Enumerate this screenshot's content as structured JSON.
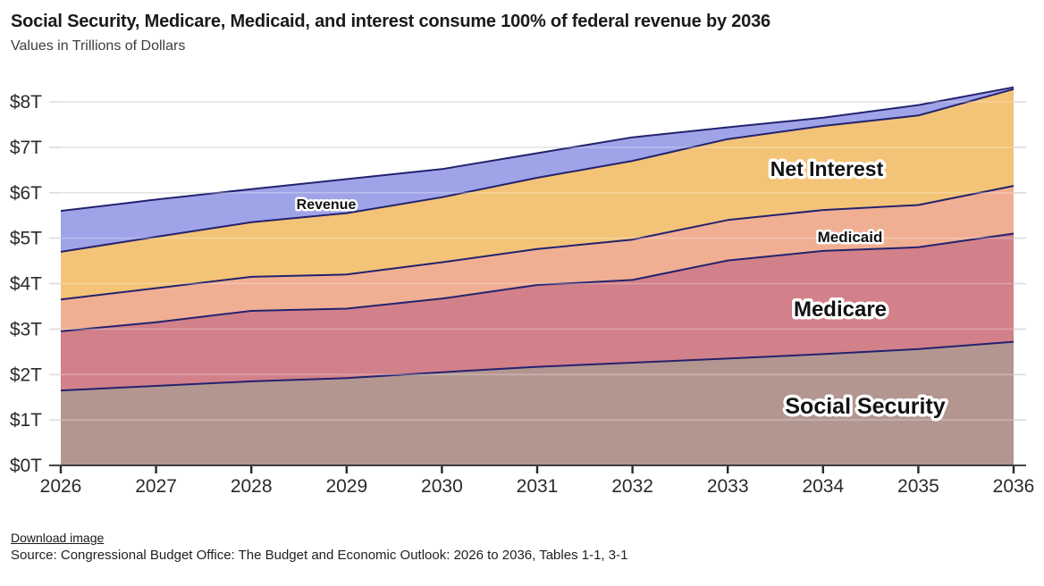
{
  "header": {
    "title": "Social Security, Medicare, Medicaid, and interest consume 100% of federal revenue by 2036",
    "subtitle": "Values in Trillions of Dollars"
  },
  "footer": {
    "download_label": "Download image",
    "source": "Source: Congressional Budget Office: The Budget and Economic Outlook: 2026 to 2036, Tables 1-1, 3-1"
  },
  "chart_data": {
    "type": "area",
    "stacked": true,
    "title": "Social Security, Medicare, Medicaid, and interest consume 100% of federal revenue by 2036",
    "subtitle": "Values in Trillions of Dollars",
    "x": [
      2026,
      2027,
      2028,
      2029,
      2030,
      2031,
      2032,
      2033,
      2034,
      2035,
      2036
    ],
    "x_tick_labels": [
      "2026",
      "2027",
      "2028",
      "2029",
      "2030",
      "2031",
      "2032",
      "2033",
      "2034",
      "2035",
      "2036"
    ],
    "y_tick_labels": [
      "$0T",
      "$1T",
      "$2T",
      "$3T",
      "$4T",
      "$5T",
      "$6T",
      "$7T",
      "$8T"
    ],
    "ylim": [
      0,
      8.5
    ],
    "grid": true,
    "legend_position": "in-chart-labels",
    "series": [
      {
        "name": "Social Security",
        "color": "#b39690",
        "values": [
          1.65,
          1.75,
          1.85,
          1.92,
          2.05,
          2.17,
          2.26,
          2.35,
          2.45,
          2.56,
          2.72
        ]
      },
      {
        "name": "Medicare",
        "color": "#d28089",
        "values": [
          1.3,
          1.4,
          1.55,
          1.53,
          1.62,
          1.8,
          1.82,
          2.16,
          2.27,
          2.24,
          2.38
        ]
      },
      {
        "name": "Medicaid",
        "color": "#f0af93",
        "values": [
          0.7,
          0.75,
          0.75,
          0.75,
          0.8,
          0.79,
          0.89,
          0.89,
          0.9,
          0.93,
          1.05
        ]
      },
      {
        "name": "Net Interest",
        "color": "#f3c377",
        "values": [
          1.05,
          1.13,
          1.2,
          1.35,
          1.43,
          1.57,
          1.73,
          1.78,
          1.85,
          1.97,
          2.13
        ]
      }
    ],
    "revenue": {
      "name": "Revenue",
      "color": "#9fa4e8",
      "values": [
        5.6,
        5.85,
        6.08,
        6.3,
        6.52,
        6.87,
        7.22,
        7.44,
        7.65,
        7.93,
        8.32
      ]
    },
    "totals_spending": [
      4.7,
      5.03,
      5.35,
      5.55,
      5.9,
      6.33,
      6.7,
      7.18,
      7.47,
      7.7,
      8.28
    ],
    "line_color": "#23226e",
    "grid_color": "#dcdcdc",
    "axis_color": "#2a2a2a"
  }
}
